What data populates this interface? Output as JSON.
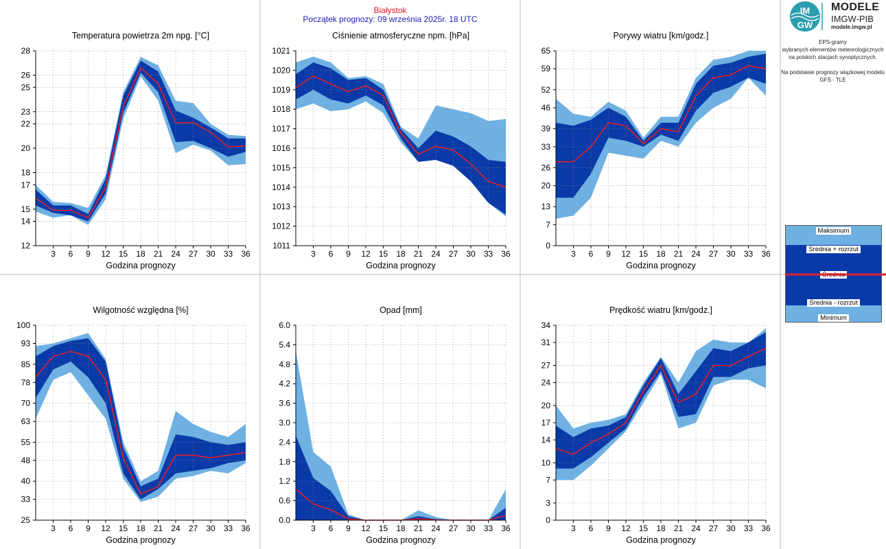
{
  "header": {
    "station": "Białystok",
    "start": "Początek prognozy: 09 września 2025r. 18 UTC"
  },
  "logo": {
    "badge_text_top": "IM",
    "badge_text_bottom": "GW",
    "line1": "MODELE",
    "line2": "IMGW-PIB",
    "line3": "modele.imgw.pl"
  },
  "info": {
    "line1": "EPS-gramy",
    "line2": "wybranych elementów meteorologicznych",
    "line3": "na polskich stacjach  synoptycznych.",
    "line4": "Na podstawie prognozy wiązkowej modelu",
    "line5": "GFS - TLE"
  },
  "legend": {
    "max": "Maksimum",
    "upper": "Średnia + rozrzut",
    "mean": "Średnia",
    "lower": "Średnia - rozrzut",
    "min": "Minimum"
  },
  "colors": {
    "outer_band": "#6fb1e3",
    "inner_band": "#0a3aa8",
    "mean_line": "#e0202a",
    "station_title": "#e8141e",
    "start_title": "#1a1ab8"
  },
  "chart_data": [
    {
      "type": "area",
      "title": "Temperatura powietrza 2m npg. [°C]",
      "xlabel": "Godzina prognozy",
      "x": [
        0,
        3,
        6,
        9,
        12,
        15,
        18,
        21,
        24,
        27,
        30,
        33,
        36
      ],
      "xticks": [
        3,
        6,
        9,
        12,
        15,
        18,
        21,
        24,
        27,
        30,
        33,
        36
      ],
      "ylim": [
        12,
        28
      ],
      "yticks": [
        12,
        14,
        15,
        17,
        18,
        20,
        22,
        23,
        25,
        26,
        28
      ],
      "grid": true,
      "series": [
        {
          "name": "Maksimum",
          "values": [
            17.0,
            15.6,
            15.5,
            15.1,
            17.8,
            24.6,
            27.5,
            26.8,
            23.9,
            23.7,
            22.0,
            21.1,
            21.0
          ]
        },
        {
          "name": "Średnia + rozrzut",
          "values": [
            16.6,
            15.3,
            15.3,
            14.6,
            17.5,
            24.3,
            27.2,
            26.3,
            23.1,
            22.5,
            21.7,
            20.8,
            20.8
          ]
        },
        {
          "name": "Średnia",
          "values": [
            15.9,
            14.9,
            14.9,
            14.3,
            16.8,
            23.4,
            26.6,
            25.3,
            22.1,
            22.1,
            21.3,
            20.1,
            20.2
          ]
        },
        {
          "name": "Średnia - rozrzut",
          "values": [
            15.3,
            14.7,
            14.5,
            14.0,
            16.3,
            22.9,
            26.2,
            24.6,
            20.5,
            20.6,
            20.0,
            19.3,
            19.7
          ]
        },
        {
          "name": "Minimum",
          "values": [
            14.8,
            14.3,
            14.5,
            13.7,
            15.8,
            22.4,
            25.9,
            23.9,
            19.6,
            20.3,
            19.8,
            18.6,
            18.7
          ]
        }
      ]
    },
    {
      "type": "area",
      "title": "Ciśnienie atmosferyczne npm. [hPa]",
      "xlabel": "Godzina prognozy",
      "x": [
        0,
        3,
        6,
        9,
        12,
        15,
        18,
        21,
        24,
        27,
        30,
        33,
        36
      ],
      "xticks": [
        3,
        6,
        9,
        12,
        15,
        18,
        21,
        24,
        27,
        30,
        33,
        36
      ],
      "ylim": [
        1011,
        1021
      ],
      "yticks": [
        1011,
        1012,
        1013,
        1014,
        1015,
        1016,
        1017,
        1018,
        1019,
        1020,
        1021
      ],
      "grid": true,
      "series": [
        {
          "name": "Maksimum",
          "values": [
            1020.4,
            1020.7,
            1020.4,
            1019.6,
            1019.7,
            1019.3,
            1017.1,
            1016.5,
            1018.2,
            1018.0,
            1017.8,
            1017.4,
            1017.5
          ]
        },
        {
          "name": "Średnia + rozrzut",
          "values": [
            1019.8,
            1020.4,
            1020.1,
            1019.5,
            1019.6,
            1019.0,
            1017.0,
            1016.0,
            1016.9,
            1016.6,
            1016.1,
            1015.4,
            1015.3
          ]
        },
        {
          "name": "Średnia",
          "values": [
            1019.1,
            1019.7,
            1019.3,
            1018.9,
            1019.2,
            1018.7,
            1016.8,
            1015.7,
            1016.1,
            1015.9,
            1015.2,
            1014.3,
            1014.0
          ]
        },
        {
          "name": "Średnia - rozrzut",
          "values": [
            1018.5,
            1019.0,
            1018.5,
            1018.3,
            1018.7,
            1018.2,
            1016.5,
            1015.3,
            1015.4,
            1015.1,
            1014.3,
            1013.2,
            1012.6
          ]
        },
        {
          "name": "Minimum",
          "values": [
            1018.0,
            1018.3,
            1017.9,
            1018.0,
            1018.4,
            1017.8,
            1016.3,
            1015.3,
            1015.4,
            1015.1,
            1014.3,
            1013.2,
            1012.5
          ]
        }
      ]
    },
    {
      "type": "area",
      "title": "Porywy wiatru [km/godz.]",
      "xlabel": "Godzina prognozy",
      "x": [
        0,
        3,
        6,
        9,
        12,
        15,
        18,
        21,
        24,
        27,
        30,
        33,
        36
      ],
      "xticks": [
        3,
        6,
        9,
        12,
        15,
        18,
        21,
        24,
        27,
        30,
        33,
        36
      ],
      "ylim": [
        0,
        65
      ],
      "yticks": [
        0,
        7,
        13,
        20,
        26,
        33,
        39,
        46,
        52,
        59,
        65
      ],
      "grid": true,
      "series": [
        {
          "name": "Maksimum",
          "values": [
            49,
            44,
            43,
            48,
            45,
            36,
            43,
            43,
            56,
            62,
            63,
            65,
            65
          ]
        },
        {
          "name": "Średnia + rozrzut",
          "values": [
            41,
            40,
            42,
            46,
            43,
            35,
            41,
            41,
            54,
            60,
            61,
            63,
            64
          ]
        },
        {
          "name": "Średnia",
          "values": [
            28,
            28,
            33,
            41,
            40,
            34,
            39,
            38,
            50,
            56,
            57,
            60,
            59
          ]
        },
        {
          "name": "Średnia - rozrzut",
          "values": [
            16,
            16,
            24,
            36,
            35,
            33,
            37,
            35,
            45,
            51,
            53,
            56,
            54
          ]
        },
        {
          "name": "Minimum",
          "values": [
            9,
            10,
            16,
            31,
            30,
            29,
            35,
            33,
            41,
            46,
            49,
            56,
            50
          ]
        }
      ]
    },
    {
      "type": "area",
      "title": "Wilgotność względna [%]",
      "xlabel": "Godzina prognozy",
      "x": [
        0,
        3,
        6,
        9,
        12,
        15,
        18,
        21,
        24,
        27,
        30,
        33,
        36
      ],
      "xticks": [
        3,
        6,
        9,
        12,
        15,
        18,
        21,
        24,
        27,
        30,
        33,
        36
      ],
      "ylim": [
        25,
        100
      ],
      "yticks": [
        25,
        33,
        40,
        48,
        55,
        63,
        70,
        78,
        85,
        93,
        100
      ],
      "grid": true,
      "series": [
        {
          "name": "Maksimum",
          "values": [
            92,
            93,
            95,
            97,
            87,
            55,
            40,
            44,
            67,
            62,
            59,
            57,
            62
          ]
        },
        {
          "name": "Średnia + rozrzut",
          "values": [
            88,
            92,
            94,
            95,
            86,
            53,
            38,
            41,
            58,
            57,
            55,
            54,
            55
          ]
        },
        {
          "name": "Średnia",
          "values": [
            80,
            88,
            90,
            88,
            79,
            49,
            35,
            38,
            50,
            50,
            49,
            50,
            51
          ]
        },
        {
          "name": "Średnia - rozrzut",
          "values": [
            72,
            83,
            86,
            80,
            70,
            43,
            33,
            37,
            43,
            44,
            45,
            47,
            48
          ]
        },
        {
          "name": "Minimum",
          "values": [
            64,
            79,
            82,
            73,
            64,
            41,
            32,
            34,
            41,
            42,
            44,
            43,
            47
          ]
        }
      ]
    },
    {
      "type": "area",
      "title": "Opad [mm]",
      "xlabel": "Godzina prognozy",
      "x": [
        0,
        3,
        6,
        9,
        12,
        15,
        18,
        21,
        24,
        27,
        30,
        33,
        36
      ],
      "xticks": [
        3,
        6,
        9,
        12,
        15,
        18,
        21,
        24,
        27,
        30,
        33,
        36
      ],
      "ylim": [
        0,
        6
      ],
      "yticks": [
        0.0,
        0.6,
        1.2,
        1.8,
        2.4,
        3.0,
        3.6,
        4.2,
        4.8,
        5.4,
        6.0
      ],
      "grid": true,
      "series": [
        {
          "name": "Maksimum",
          "values": [
            5.2,
            2.1,
            1.65,
            0.18,
            0.0,
            0.0,
            0.0,
            0.3,
            0.1,
            0.0,
            0.0,
            0.0,
            0.95
          ]
        },
        {
          "name": "Średnia + rozrzut",
          "values": [
            2.6,
            1.3,
            0.9,
            0.12,
            0.0,
            0.0,
            0.0,
            0.12,
            0.03,
            0.0,
            0.0,
            0.0,
            0.38
          ]
        },
        {
          "name": "Średnia",
          "values": [
            0.95,
            0.5,
            0.32,
            0.04,
            0.0,
            0.0,
            0.0,
            0.04,
            0.01,
            0.0,
            0.0,
            0.0,
            0.15
          ]
        },
        {
          "name": "Średnia - rozrzut",
          "values": [
            0.0,
            0.0,
            0.0,
            0.0,
            0.0,
            0.0,
            0.0,
            0.0,
            0.0,
            0.0,
            0.0,
            0.0,
            0.0
          ]
        },
        {
          "name": "Minimum",
          "values": [
            0.0,
            0.0,
            0.0,
            0.0,
            0.0,
            0.0,
            0.0,
            0.0,
            0.0,
            0.0,
            0.0,
            0.0,
            0.0
          ]
        }
      ]
    },
    {
      "type": "area",
      "title": "Prędkość wiatru [km/godz.]",
      "xlabel": "Godzina prognozy",
      "x": [
        0,
        3,
        6,
        9,
        12,
        15,
        18,
        21,
        24,
        27,
        30,
        33,
        36
      ],
      "xticks": [
        3,
        6,
        9,
        12,
        15,
        18,
        21,
        24,
        27,
        30,
        33,
        36
      ],
      "ylim": [
        0,
        34
      ],
      "yticks": [
        0,
        3,
        7,
        10,
        14,
        17,
        20,
        24,
        27,
        31,
        34
      ],
      "grid": true,
      "series": [
        {
          "name": "Maksimum",
          "values": [
            20.0,
            16.0,
            17.0,
            17.5,
            18.5,
            24.0,
            28.5,
            24.0,
            29.5,
            31.5,
            31.0,
            31.0,
            33.5
          ]
        },
        {
          "name": "Średnia + rozrzut",
          "values": [
            16.5,
            14.5,
            16.0,
            16.5,
            18.0,
            23.5,
            28.3,
            22.0,
            26.0,
            30.0,
            29.5,
            31.0,
            32.8
          ]
        },
        {
          "name": "Średnia",
          "values": [
            12.5,
            11.5,
            13.5,
            15.0,
            17.0,
            22.5,
            27.0,
            20.5,
            22.0,
            27.0,
            27.0,
            28.5,
            30.0
          ]
        },
        {
          "name": "Średnia - rozrzut",
          "values": [
            9.0,
            9.0,
            11.0,
            13.5,
            16.0,
            21.5,
            26.0,
            18.0,
            18.5,
            25.0,
            25.0,
            26.5,
            27.0
          ]
        },
        {
          "name": "Minimum",
          "values": [
            7.0,
            7.0,
            9.5,
            12.5,
            15.5,
            20.5,
            25.5,
            16.0,
            17.0,
            23.5,
            24.5,
            24.5,
            23.0
          ]
        }
      ]
    }
  ]
}
